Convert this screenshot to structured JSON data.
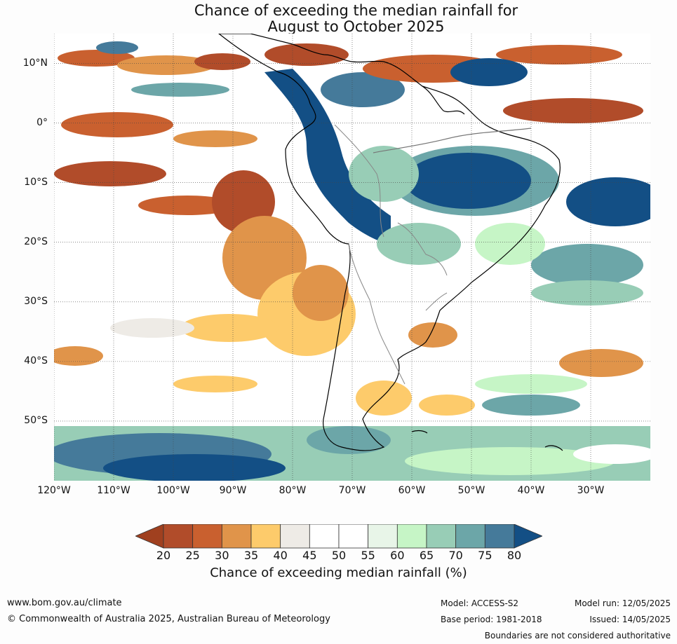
{
  "title_line1": "Chance of exceeding the median rainfall for",
  "title_line2": "August to October 2025",
  "map": {
    "lat_labels": [
      "10°N",
      "0°",
      "10°S",
      "20°S",
      "30°S",
      "40°S",
      "50°S"
    ],
    "lon_labels": [
      "120°W",
      "110°W",
      "100°W",
      "90°W",
      "80°W",
      "70°W",
      "60°W",
      "50°W",
      "40°W",
      "30°W"
    ],
    "lon_range": [
      -120,
      -20
    ],
    "lat_range": [
      -60,
      15
    ]
  },
  "colorbar": {
    "ticks": [
      "20",
      "25",
      "30",
      "35",
      "40",
      "45",
      "50",
      "55",
      "60",
      "65",
      "70",
      "75",
      "80"
    ],
    "colors": [
      "#a0401f",
      "#b14c2a",
      "#c9602f",
      "#e0944a",
      "#fdcb6b",
      "#eeebe6",
      "#ffffff",
      "#ffffff",
      "#e8f5e8",
      "#c6f5c6",
      "#98cdb6",
      "#6ca6a8",
      "#457a9a",
      "#134f85"
    ],
    "label": "Chance of exceeding median rainfall (%)"
  },
  "footer": {
    "website": "www.bom.gov.au/climate",
    "copyright": "© Commonwealth of Australia 2025, Australian Bureau of Meteorology",
    "model": "Model: ACCESS-S2",
    "base_period": "Base period: 1981-2018",
    "model_run": "Model run: 12/05/2025",
    "issued": "Issued: 14/05/2025",
    "disclaimer": "Boundaries are not considered authoritative"
  }
}
